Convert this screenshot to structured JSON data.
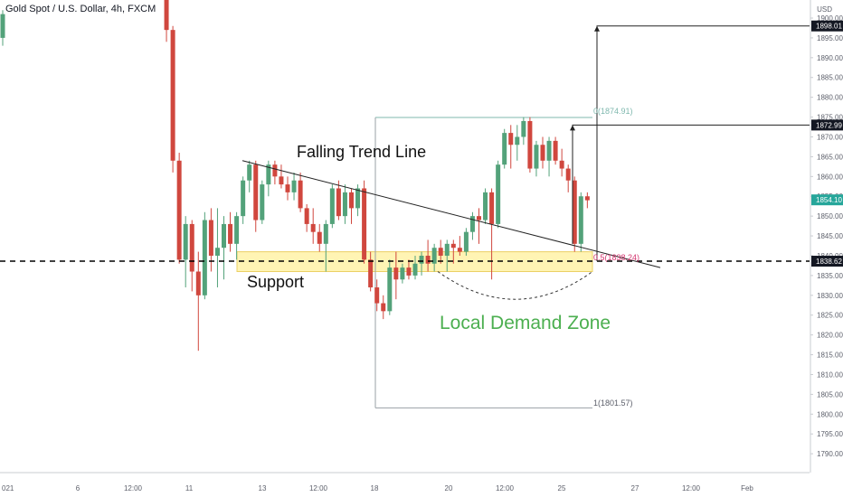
{
  "header": {
    "title": "Gold Spot / U.S. Dollar, 4h, FXCM"
  },
  "colors": {
    "bull": "#53a27a",
    "bear": "#d0473e",
    "zone_fill": "#fff3a8",
    "zone_stroke": "#e8c84a",
    "demand_text": "#4caf50",
    "fib_line": "#7fb8ae",
    "fib_mid": "#d4356f",
    "axis_text": "#5d606b",
    "price_tag_bg": "#131722",
    "current_tag_bg": "#26a69a"
  },
  "chart_data": {
    "type": "candlestick",
    "title": "Gold Spot / U.S. Dollar, 4h, FXCM",
    "price_axis_unit": "USD",
    "ylim": [
      1781,
      1902
    ],
    "y_ticks": [
      1785,
      1790,
      1795,
      1800,
      1805,
      1810,
      1815,
      1820,
      1825,
      1830,
      1835,
      1840,
      1845,
      1850,
      1855,
      1860,
      1865,
      1870,
      1875,
      1880,
      1885,
      1890,
      1895,
      1900
    ],
    "x_ticks": [
      "021",
      "6",
      "12:00",
      "11",
      "13",
      "12:00",
      "18",
      "20",
      "12:00",
      "25",
      "27",
      "12:00",
      "Feb"
    ],
    "candles": [
      {
        "o": 1895,
        "h": 1902,
        "l": 1893,
        "c": 1901
      },
      {
        "o": 1907,
        "h": 1910,
        "l": 1894,
        "c": 1897
      },
      {
        "o": 1897,
        "h": 1898,
        "l": 1861,
        "c": 1864
      },
      {
        "o": 1864,
        "h": 1866,
        "l": 1838,
        "c": 1839
      },
      {
        "o": 1839,
        "h": 1850,
        "l": 1832,
        "c": 1848
      },
      {
        "o": 1848,
        "h": 1849,
        "l": 1831,
        "c": 1836
      },
      {
        "o": 1836,
        "h": 1841,
        "l": 1816,
        "c": 1830
      },
      {
        "o": 1830,
        "h": 1851,
        "l": 1829,
        "c": 1849
      },
      {
        "o": 1849,
        "h": 1852,
        "l": 1836,
        "c": 1840
      },
      {
        "o": 1840,
        "h": 1852,
        "l": 1832,
        "c": 1842
      },
      {
        "o": 1842,
        "h": 1850,
        "l": 1834,
        "c": 1848
      },
      {
        "o": 1848,
        "h": 1851,
        "l": 1841,
        "c": 1843
      },
      {
        "o": 1843,
        "h": 1851,
        "l": 1839,
        "c": 1850
      },
      {
        "o": 1850,
        "h": 1860,
        "l": 1848,
        "c": 1859
      },
      {
        "o": 1859,
        "h": 1864,
        "l": 1856,
        "c": 1863
      },
      {
        "o": 1863,
        "h": 1864,
        "l": 1846,
        "c": 1849
      },
      {
        "o": 1849,
        "h": 1859,
        "l": 1848,
        "c": 1858
      },
      {
        "o": 1858,
        "h": 1864,
        "l": 1855,
        "c": 1863
      },
      {
        "o": 1863,
        "h": 1864,
        "l": 1858,
        "c": 1860
      },
      {
        "o": 1860,
        "h": 1863,
        "l": 1857,
        "c": 1858
      },
      {
        "o": 1858,
        "h": 1860,
        "l": 1854,
        "c": 1856
      },
      {
        "o": 1856,
        "h": 1861,
        "l": 1854,
        "c": 1859
      },
      {
        "o": 1859,
        "h": 1861,
        "l": 1851,
        "c": 1852
      },
      {
        "o": 1852,
        "h": 1853,
        "l": 1846,
        "c": 1848
      },
      {
        "o": 1848,
        "h": 1852,
        "l": 1843,
        "c": 1846
      },
      {
        "o": 1846,
        "h": 1848,
        "l": 1841,
        "c": 1843
      },
      {
        "o": 1843,
        "h": 1849,
        "l": 1836,
        "c": 1848
      },
      {
        "o": 1848,
        "h": 1858,
        "l": 1847,
        "c": 1857
      },
      {
        "o": 1857,
        "h": 1859,
        "l": 1849,
        "c": 1850
      },
      {
        "o": 1850,
        "h": 1858,
        "l": 1848,
        "c": 1856
      },
      {
        "o": 1856,
        "h": 1857,
        "l": 1848,
        "c": 1852
      },
      {
        "o": 1852,
        "h": 1858,
        "l": 1850,
        "c": 1857
      },
      {
        "o": 1857,
        "h": 1859,
        "l": 1838,
        "c": 1839
      },
      {
        "o": 1839,
        "h": 1841,
        "l": 1831,
        "c": 1832
      },
      {
        "o": 1832,
        "h": 1834,
        "l": 1826,
        "c": 1828
      },
      {
        "o": 1828,
        "h": 1830,
        "l": 1824,
        "c": 1826
      },
      {
        "o": 1826,
        "h": 1839,
        "l": 1825,
        "c": 1837
      },
      {
        "o": 1837,
        "h": 1841,
        "l": 1829,
        "c": 1834
      },
      {
        "o": 1834,
        "h": 1838,
        "l": 1833,
        "c": 1837
      },
      {
        "o": 1837,
        "h": 1839,
        "l": 1834,
        "c": 1835
      },
      {
        "o": 1835,
        "h": 1840,
        "l": 1834,
        "c": 1838
      },
      {
        "o": 1838,
        "h": 1841,
        "l": 1835,
        "c": 1840
      },
      {
        "o": 1840,
        "h": 1844,
        "l": 1836,
        "c": 1838
      },
      {
        "o": 1838,
        "h": 1843,
        "l": 1836,
        "c": 1842
      },
      {
        "o": 1842,
        "h": 1844,
        "l": 1838,
        "c": 1840
      },
      {
        "o": 1840,
        "h": 1844,
        "l": 1836,
        "c": 1843
      },
      {
        "o": 1843,
        "h": 1844,
        "l": 1838,
        "c": 1842
      },
      {
        "o": 1842,
        "h": 1845,
        "l": 1840,
        "c": 1841
      },
      {
        "o": 1841,
        "h": 1847,
        "l": 1840,
        "c": 1846
      },
      {
        "o": 1846,
        "h": 1851,
        "l": 1844,
        "c": 1850
      },
      {
        "o": 1850,
        "h": 1852,
        "l": 1843,
        "c": 1849
      },
      {
        "o": 1849,
        "h": 1857,
        "l": 1848,
        "c": 1856
      },
      {
        "o": 1856,
        "h": 1857,
        "l": 1834,
        "c": 1848
      },
      {
        "o": 1848,
        "h": 1864,
        "l": 1847,
        "c": 1863
      },
      {
        "o": 1863,
        "h": 1872,
        "l": 1862,
        "c": 1871
      },
      {
        "o": 1871,
        "h": 1873,
        "l": 1862,
        "c": 1868
      },
      {
        "o": 1868,
        "h": 1873,
        "l": 1864,
        "c": 1870
      },
      {
        "o": 1870,
        "h": 1875,
        "l": 1868,
        "c": 1874
      },
      {
        "o": 1874,
        "h": 1875,
        "l": 1861,
        "c": 1862
      },
      {
        "o": 1862,
        "h": 1869,
        "l": 1860,
        "c": 1868
      },
      {
        "o": 1868,
        "h": 1870,
        "l": 1862,
        "c": 1864
      },
      {
        "o": 1864,
        "h": 1870,
        "l": 1860,
        "c": 1869
      },
      {
        "o": 1869,
        "h": 1870,
        "l": 1863,
        "c": 1864
      },
      {
        "o": 1864,
        "h": 1867,
        "l": 1860,
        "c": 1862
      },
      {
        "o": 1862,
        "h": 1863,
        "l": 1856,
        "c": 1859
      },
      {
        "o": 1859,
        "h": 1860,
        "l": 1841,
        "c": 1843
      },
      {
        "o": 1843,
        "h": 1856,
        "l": 1841,
        "c": 1855
      },
      {
        "o": 1855,
        "h": 1856,
        "l": 1852,
        "c": 1854
      }
    ],
    "current_price": 1854.1,
    "annotations": {
      "trend_label": "Falling Trend Line",
      "support_label": "Support",
      "demand_label": "Local Demand Zone",
      "fib_top": "0(1874.91)",
      "fib_mid": "0.5(1838.24)",
      "fib_bottom": "1(1801.57)",
      "support_level": 1838.62,
      "fib_levels": [
        1874.91,
        1838.24,
        1801.57
      ],
      "demand_zone": [
        1836,
        1841
      ],
      "trend_line": [
        [
          1864,
          1837
        ]
      ],
      "targets": [
        1898.01,
        1872.99
      ]
    },
    "price_tags": [
      {
        "label": "1898.01",
        "value": 1898.01,
        "style": "dark"
      },
      {
        "label": "1872.99",
        "value": 1872.99,
        "style": "dark"
      },
      {
        "label": "1854.10",
        "value": 1854.1,
        "style": "current"
      },
      {
        "label": "1838.62",
        "value": 1838.62,
        "style": "dark"
      }
    ],
    "currency_label": "USD"
  }
}
